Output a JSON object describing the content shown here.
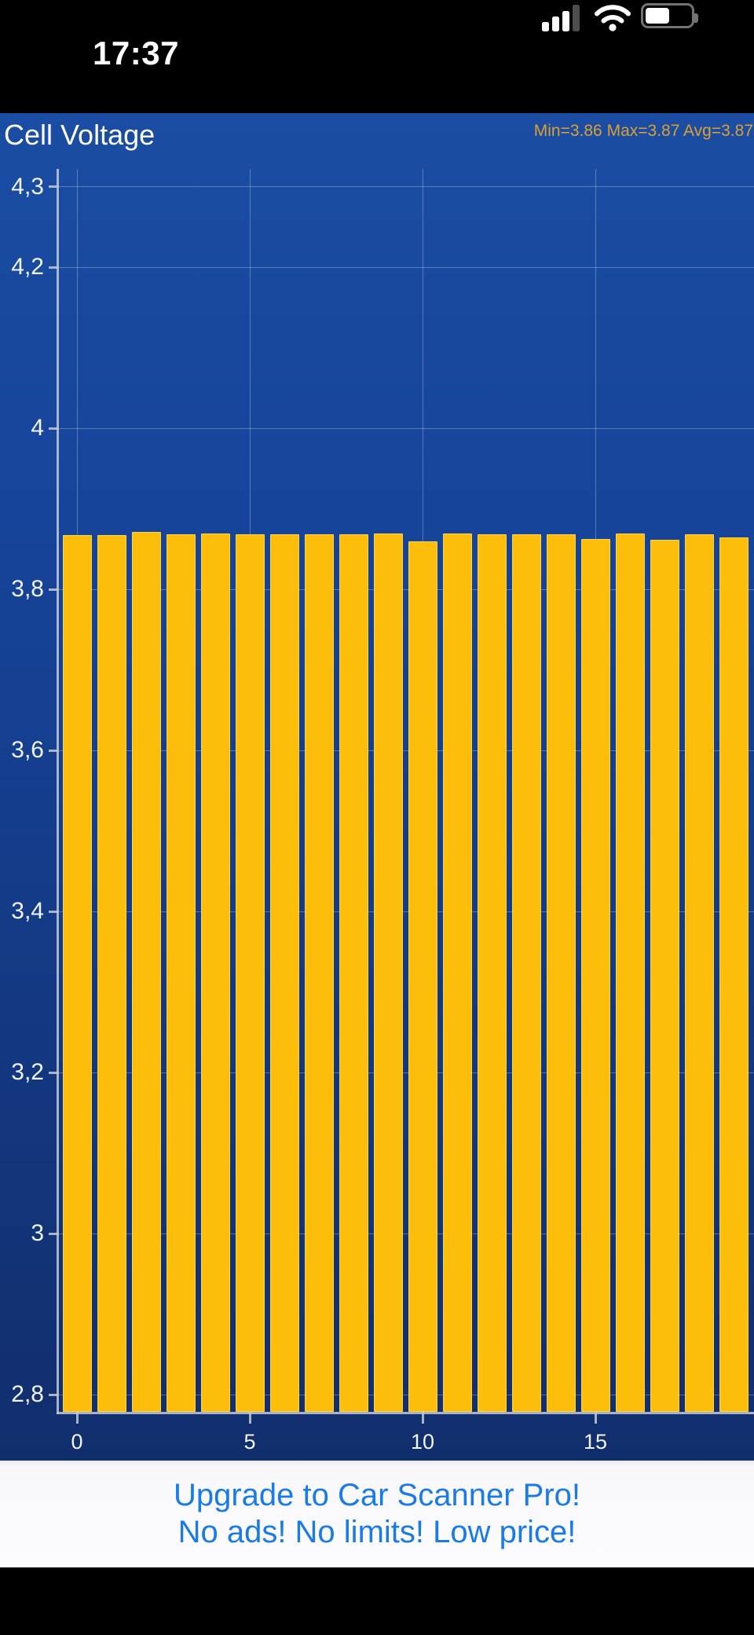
{
  "status_bar": {
    "time": "17:37",
    "signal_bars_filled": 3,
    "signal_bars_total": 4,
    "wifi": "full",
    "battery_percent": 48
  },
  "chart": {
    "title": "Cell Voltage",
    "stats_text": "Min=3.86 Max=3.87 Avg=3.87"
  },
  "chart_data": {
    "type": "bar",
    "title": "Cell Voltage",
    "stats": {
      "min": 3.86,
      "max": 3.87,
      "avg": 3.87
    },
    "x": [
      0,
      1,
      2,
      3,
      4,
      5,
      6,
      7,
      8,
      9,
      10,
      11,
      12,
      13,
      14,
      15,
      16,
      17,
      18,
      19
    ],
    "values": [
      3.867,
      3.867,
      3.871,
      3.868,
      3.869,
      3.868,
      3.868,
      3.868,
      3.868,
      3.869,
      3.86,
      3.869,
      3.868,
      3.868,
      3.868,
      3.862,
      3.869,
      3.861,
      3.868,
      3.864
    ],
    "xlabel": "",
    "ylabel": "",
    "ylim": [
      2.78,
      4.32
    ],
    "yticks": [
      {
        "value": 4.3,
        "label": "4,3"
      },
      {
        "value": 4.2,
        "label": "4,2"
      },
      {
        "value": 4.0,
        "label": "4"
      },
      {
        "value": 3.8,
        "label": "3,8"
      },
      {
        "value": 3.6,
        "label": "3,6"
      },
      {
        "value": 3.4,
        "label": "3,4"
      },
      {
        "value": 3.2,
        "label": "3,2"
      },
      {
        "value": 3.0,
        "label": "3"
      },
      {
        "value": 2.8,
        "label": "2,8"
      }
    ],
    "xticks": [
      {
        "value": 0,
        "label": "0"
      },
      {
        "value": 5,
        "label": "5"
      },
      {
        "value": 10,
        "label": "10"
      },
      {
        "value": 15,
        "label": "15"
      }
    ],
    "grid": true,
    "legend": false,
    "bar_color": "#FCBE0A",
    "background_gradient": [
      "#1A4DA3",
      "#112E6C"
    ],
    "stats_color": "#DBA032"
  },
  "ad_banner": {
    "line1": "Upgrade to Car Scanner Pro!",
    "line2": "No ads! No limits! Low price!"
  }
}
